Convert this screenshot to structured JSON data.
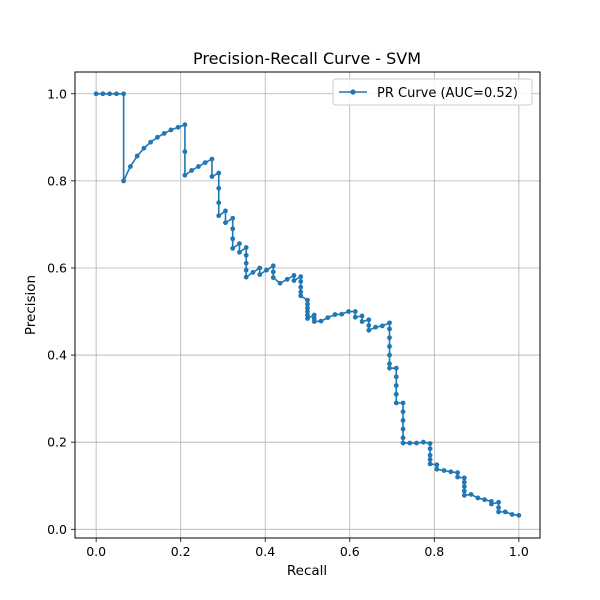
{
  "chart_data": {
    "type": "line",
    "title": "Precision-Recall Curve - SVM",
    "xlabel": "Recall",
    "ylabel": "Precision",
    "xlim": [
      -0.05,
      1.05
    ],
    "ylim": [
      -0.02,
      1.05
    ],
    "xticks": [
      0.0,
      0.2,
      0.4,
      0.6,
      0.8,
      1.0
    ],
    "xtick_labels": [
      "0.0",
      "0.2",
      "0.4",
      "0.6",
      "0.8",
      "1.0"
    ],
    "yticks": [
      0.0,
      0.2,
      0.4,
      0.6,
      0.8,
      1.0
    ],
    "ytick_labels": [
      "0.0",
      "0.2",
      "0.4",
      "0.6",
      "0.8",
      "1.0"
    ],
    "grid": true,
    "legend_position": "upper-right",
    "series": [
      {
        "name": "PR Curve (AUC=0.52)",
        "color": "#1f77b4",
        "marker": "circle",
        "points": [
          [
            0.0,
            1.0
          ],
          [
            0.016,
            1.0
          ],
          [
            0.032,
            1.0
          ],
          [
            0.048,
            1.0
          ],
          [
            0.065,
            1.0
          ],
          [
            0.065,
            0.8
          ],
          [
            0.081,
            0.833
          ],
          [
            0.097,
            0.857
          ],
          [
            0.113,
            0.875
          ],
          [
            0.129,
            0.889
          ],
          [
            0.145,
            0.9
          ],
          [
            0.161,
            0.909
          ],
          [
            0.177,
            0.917
          ],
          [
            0.194,
            0.923
          ],
          [
            0.21,
            0.929
          ],
          [
            0.21,
            0.867
          ],
          [
            0.21,
            0.813
          ],
          [
            0.226,
            0.824
          ],
          [
            0.242,
            0.833
          ],
          [
            0.258,
            0.842
          ],
          [
            0.274,
            0.85
          ],
          [
            0.274,
            0.81
          ],
          [
            0.29,
            0.818
          ],
          [
            0.29,
            0.783
          ],
          [
            0.29,
            0.75
          ],
          [
            0.29,
            0.72
          ],
          [
            0.306,
            0.731
          ],
          [
            0.306,
            0.704
          ],
          [
            0.323,
            0.714
          ],
          [
            0.323,
            0.69
          ],
          [
            0.323,
            0.667
          ],
          [
            0.323,
            0.645
          ],
          [
            0.339,
            0.656
          ],
          [
            0.339,
            0.636
          ],
          [
            0.355,
            0.647
          ],
          [
            0.355,
            0.629
          ],
          [
            0.355,
            0.611
          ],
          [
            0.355,
            0.595
          ],
          [
            0.355,
            0.579
          ],
          [
            0.371,
            0.59
          ],
          [
            0.387,
            0.6
          ],
          [
            0.387,
            0.585
          ],
          [
            0.403,
            0.595
          ],
          [
            0.419,
            0.605
          ],
          [
            0.419,
            0.591
          ],
          [
            0.419,
            0.578
          ],
          [
            0.435,
            0.565
          ],
          [
            0.452,
            0.574
          ],
          [
            0.468,
            0.583
          ],
          [
            0.468,
            0.571
          ],
          [
            0.484,
            0.58
          ],
          [
            0.484,
            0.569
          ],
          [
            0.484,
            0.556
          ],
          [
            0.484,
            0.545
          ],
          [
            0.484,
            0.536
          ],
          [
            0.5,
            0.526
          ],
          [
            0.5,
            0.517
          ],
          [
            0.5,
            0.508
          ],
          [
            0.5,
            0.5
          ],
          [
            0.5,
            0.492
          ],
          [
            0.5,
            0.484
          ],
          [
            0.516,
            0.492
          ],
          [
            0.516,
            0.484
          ],
          [
            0.516,
            0.477
          ],
          [
            0.532,
            0.478
          ],
          [
            0.548,
            0.486
          ],
          [
            0.565,
            0.493
          ],
          [
            0.581,
            0.494
          ],
          [
            0.597,
            0.5
          ],
          [
            0.613,
            0.5
          ],
          [
            0.613,
            0.487
          ],
          [
            0.629,
            0.49
          ],
          [
            0.629,
            0.477
          ],
          [
            0.645,
            0.481
          ],
          [
            0.645,
            0.468
          ],
          [
            0.645,
            0.457
          ],
          [
            0.661,
            0.464
          ],
          [
            0.677,
            0.467
          ],
          [
            0.694,
            0.474
          ],
          [
            0.694,
            0.46
          ],
          [
            0.694,
            0.44
          ],
          [
            0.694,
            0.42
          ],
          [
            0.694,
            0.4
          ],
          [
            0.694,
            0.38
          ],
          [
            0.694,
            0.37
          ],
          [
            0.71,
            0.37
          ],
          [
            0.71,
            0.35
          ],
          [
            0.71,
            0.33
          ],
          [
            0.71,
            0.31
          ],
          [
            0.71,
            0.29
          ],
          [
            0.726,
            0.29
          ],
          [
            0.726,
            0.27
          ],
          [
            0.726,
            0.25
          ],
          [
            0.726,
            0.23
          ],
          [
            0.726,
            0.21
          ],
          [
            0.726,
            0.198
          ],
          [
            0.742,
            0.198
          ],
          [
            0.758,
            0.198
          ],
          [
            0.774,
            0.2
          ],
          [
            0.79,
            0.197
          ],
          [
            0.79,
            0.185
          ],
          [
            0.79,
            0.17
          ],
          [
            0.79,
            0.16
          ],
          [
            0.79,
            0.15
          ],
          [
            0.806,
            0.148
          ],
          [
            0.806,
            0.138
          ],
          [
            0.823,
            0.135
          ],
          [
            0.839,
            0.132
          ],
          [
            0.855,
            0.13
          ],
          [
            0.855,
            0.12
          ],
          [
            0.871,
            0.118
          ],
          [
            0.871,
            0.108
          ],
          [
            0.871,
            0.098
          ],
          [
            0.871,
            0.088
          ],
          [
            0.871,
            0.078
          ],
          [
            0.887,
            0.08
          ],
          [
            0.903,
            0.072
          ],
          [
            0.919,
            0.068
          ],
          [
            0.935,
            0.064
          ],
          [
            0.935,
            0.058
          ],
          [
            0.952,
            0.062
          ],
          [
            0.952,
            0.05
          ],
          [
            0.952,
            0.04
          ],
          [
            0.968,
            0.04
          ],
          [
            0.984,
            0.034
          ],
          [
            1.0,
            0.032
          ]
        ]
      }
    ]
  }
}
